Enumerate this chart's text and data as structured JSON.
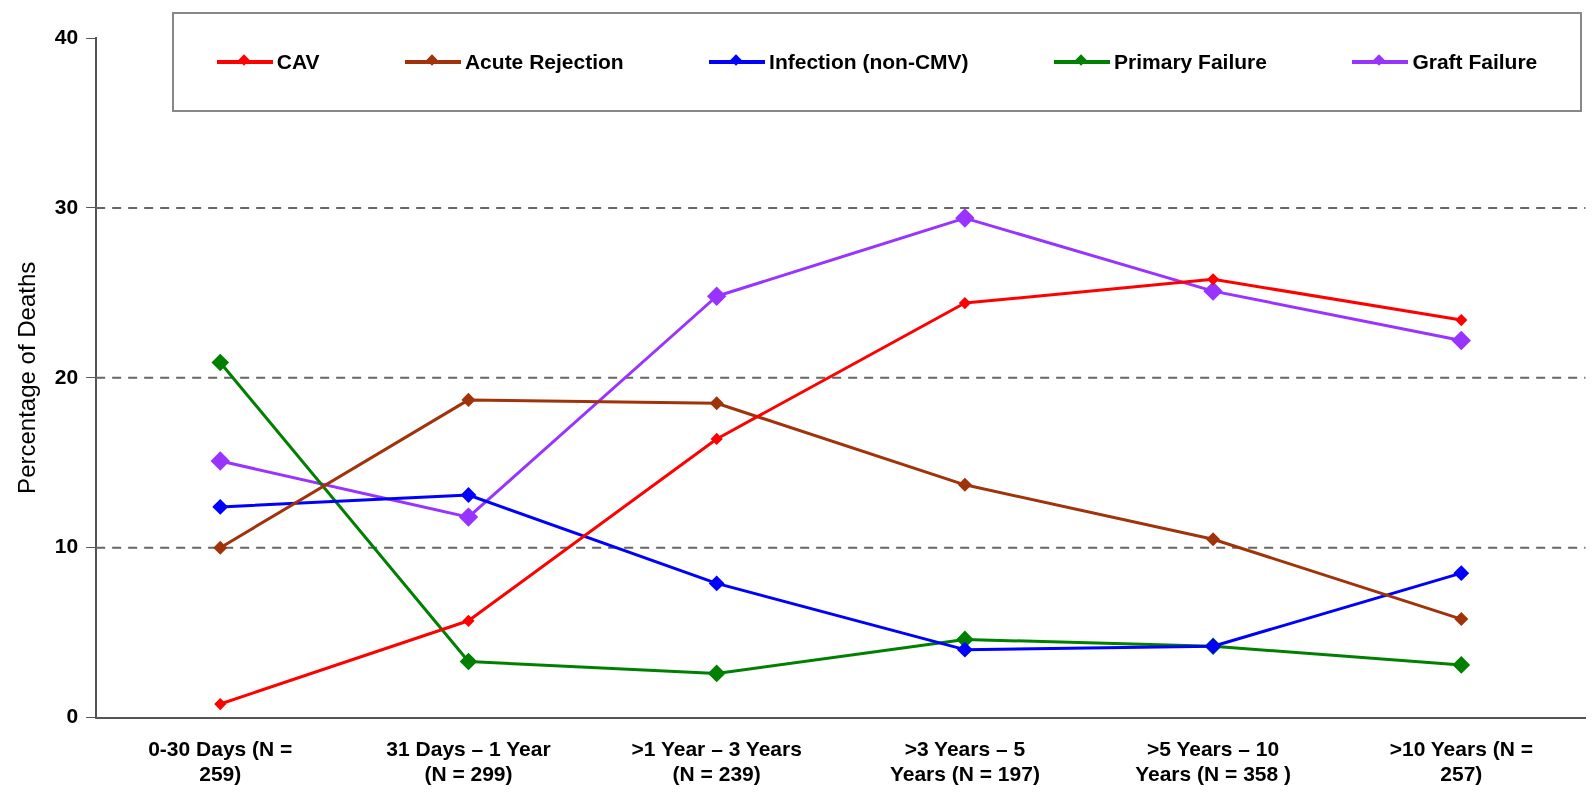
{
  "chart_data": {
    "type": "line",
    "ylabel": "Percentage of Deaths",
    "categories": [
      "0-30 Days (N = 259)",
      "31 Days – 1 Year (N = 299)",
      ">1 Year – 3 Years (N = 239)",
      ">3 Years – 5 Years (N = 197)",
      ">5 Years – 10 Years (N = 358 )",
      ">10 Years (N = 257)"
    ],
    "series": [
      {
        "name": "CAV",
        "color": "#ff0000",
        "values": [
          0.8,
          5.7,
          16.4,
          24.4,
          25.8,
          23.4
        ]
      },
      {
        "name": "Acute Rejection",
        "color": "#a0330a",
        "values": [
          10.0,
          18.7,
          18.5,
          13.7,
          10.5,
          5.8
        ]
      },
      {
        "name": "Infection (non-CMV)",
        "color": "#0000ff",
        "values": [
          12.4,
          13.1,
          7.9,
          4.0,
          4.2,
          8.5
        ]
      },
      {
        "name": "Primary Failure",
        "color": "#008000",
        "values": [
          20.9,
          3.3,
          2.6,
          4.6,
          4.2,
          3.1
        ]
      },
      {
        "name": "Graft Failure",
        "color": "#9933ff",
        "values": [
          15.1,
          11.8,
          24.8,
          29.4,
          25.1,
          22.2
        ]
      }
    ],
    "ylim": [
      0,
      40
    ],
    "yticks": [
      0,
      10,
      20,
      30,
      40
    ],
    "grid": "y",
    "legend": "top",
    "marker": "diamond",
    "line_style": "solid"
  }
}
